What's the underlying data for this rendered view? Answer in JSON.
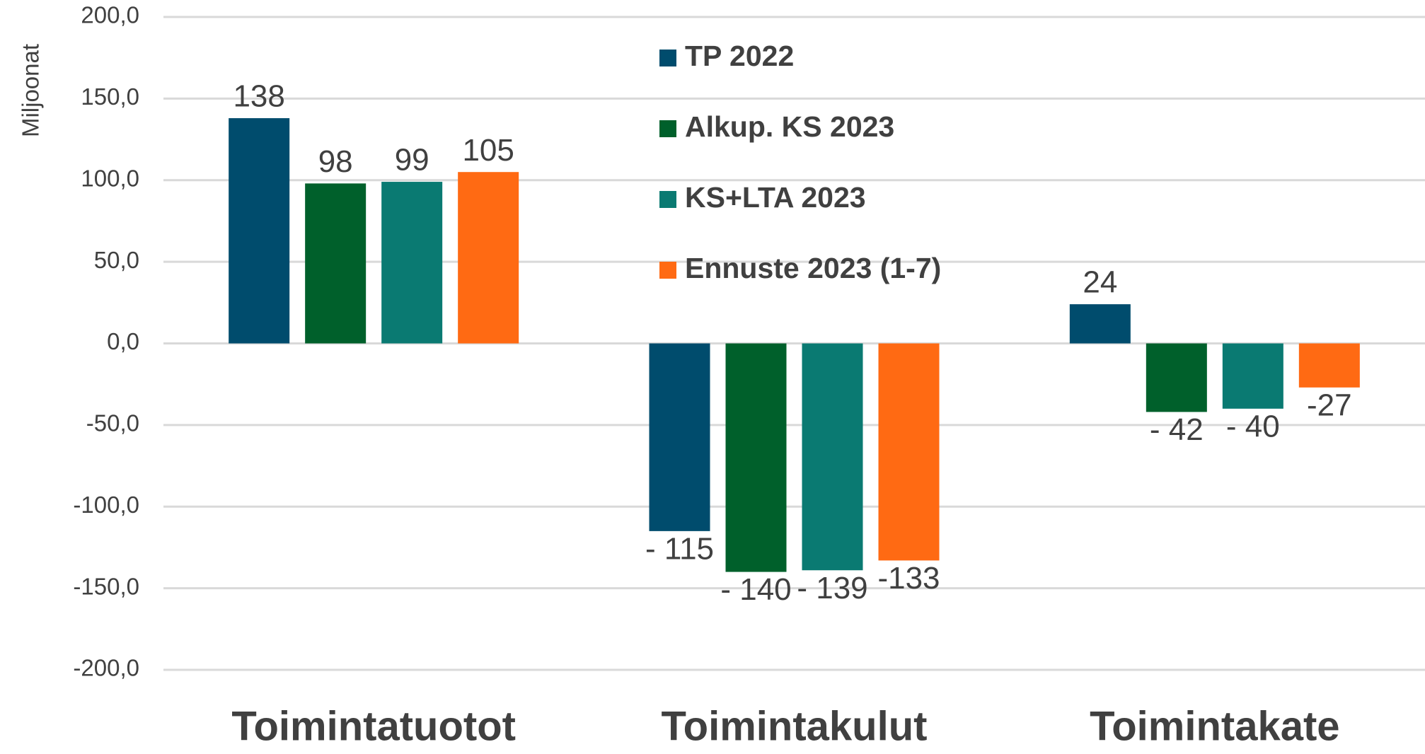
{
  "chart_data": {
    "type": "bar",
    "y_axis_label": "Miljoonat",
    "categories": [
      "Toimintatuotot",
      "Toimintakulut",
      "Toimintakate"
    ],
    "series": [
      {
        "name": "TP 2022",
        "color": "#004c6d",
        "values": [
          138,
          -115,
          24
        ],
        "value_labels": [
          "138",
          "- 115",
          "24"
        ]
      },
      {
        "name": "Alkup. KS 2023",
        "color": "#00602b",
        "values": [
          98,
          -140,
          -42
        ],
        "value_labels": [
          "98",
          "- 140",
          "- 42"
        ]
      },
      {
        "name": "KS+LTA 2023",
        "color": "#0a7a72",
        "values": [
          99,
          -139,
          -40
        ],
        "value_labels": [
          "99",
          "- 139",
          "- 40"
        ]
      },
      {
        "name": "Ennuste 2023 (1-7)",
        "color": "#ff6a13",
        "values": [
          105,
          -133,
          -27
        ],
        "value_labels": [
          "105",
          "-133",
          "-27"
        ]
      }
    ],
    "ylim": [
      -200,
      200
    ],
    "yticks": [
      {
        "value": -200,
        "label": "-200,0"
      },
      {
        "value": -150,
        "label": "-150,0"
      },
      {
        "value": -100,
        "label": "-100,0"
      },
      {
        "value": -50,
        "label": "-50,0"
      },
      {
        "value": 0,
        "label": "0,0"
      },
      {
        "value": 50,
        "label": "50,0"
      },
      {
        "value": 100,
        "label": "100,0"
      },
      {
        "value": 150,
        "label": "150,0"
      },
      {
        "value": 200,
        "label": "200,0"
      }
    ],
    "grid": true,
    "legend": "top"
  }
}
